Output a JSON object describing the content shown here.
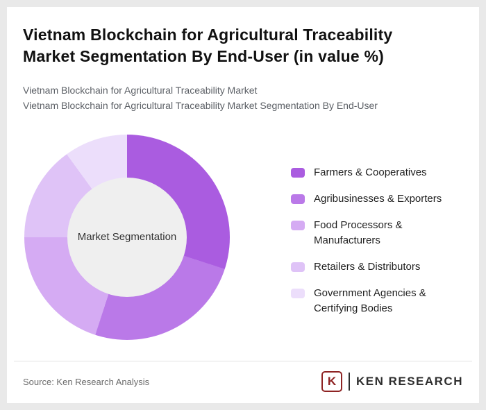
{
  "page": {
    "title": "Vietnam Blockchain for Agricultural Traceability Market Segmentation By End-User (in value %)",
    "subtitle_line1": "Vietnam Blockchain for Agricultural Traceability Market",
    "subtitle_line2": "Vietnam Blockchain for Agricultural Traceability Market Segmentation By End-User"
  },
  "chart_data": {
    "type": "pie",
    "donut": true,
    "start_angle_deg": 0,
    "center_label": "Market Segmentation",
    "unit": "value %",
    "legend_position": "right",
    "categories": [
      "Farmers & Cooperatives",
      "Agribusinesses & Exporters",
      "Food Processors & Manufacturers",
      "Retailers & Distributors",
      "Government Agencies & Certifying Bodies"
    ],
    "values": [
      30,
      25,
      20,
      15,
      10
    ],
    "colors": [
      "#aa5ce0",
      "#ba79e8",
      "#d5abf3",
      "#dfc3f7",
      "#ecdefb"
    ],
    "hole_color": "#efefef"
  },
  "footer": {
    "source": "Source: Ken Research Analysis",
    "logo_letter": "K",
    "logo_text": "KEN RESEARCH",
    "logo_accent_color": "#8e2323"
  }
}
